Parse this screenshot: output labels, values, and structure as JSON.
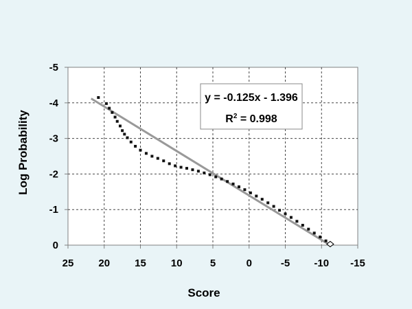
{
  "chart_data": {
    "type": "scatter",
    "xlabel": "Score",
    "ylabel": "Log Probability",
    "x_ticks": [
      "25",
      "20",
      "15",
      "10",
      "5",
      "0",
      "-5",
      "-10",
      "-15"
    ],
    "y_ticks": [
      "-5",
      "-4",
      "-3",
      "-2",
      "-1",
      "0"
    ],
    "xlim": [
      25,
      -15
    ],
    "ylim": [
      0,
      -5
    ],
    "grid": true,
    "colors": {
      "background": "#e9f4f7",
      "plot_background": "#ffffff",
      "points": "#111111",
      "trendline": "#999999"
    },
    "series": [
      {
        "type": "scatter",
        "points": [
          [
            20.8,
            -4.15
          ],
          [
            19.7,
            -3.98
          ],
          [
            19.3,
            -3.85
          ],
          [
            18.9,
            -3.73
          ],
          [
            18.5,
            -3.6
          ],
          [
            18.2,
            -3.48
          ],
          [
            17.8,
            -3.35
          ],
          [
            17.5,
            -3.22
          ],
          [
            17.2,
            -3.12
          ],
          [
            16.8,
            -3.02
          ],
          [
            16.3,
            -2.9
          ],
          [
            15.7,
            -2.78
          ],
          [
            15.0,
            -2.67
          ],
          [
            14.2,
            -2.58
          ],
          [
            13.4,
            -2.5
          ],
          [
            12.6,
            -2.44
          ],
          [
            11.8,
            -2.37
          ],
          [
            11.0,
            -2.29
          ],
          [
            10.2,
            -2.23
          ],
          [
            9.4,
            -2.19
          ],
          [
            8.6,
            -2.16
          ],
          [
            7.8,
            -2.12
          ],
          [
            7.0,
            -2.08
          ],
          [
            6.2,
            -2.03
          ],
          [
            5.4,
            -1.98
          ],
          [
            4.6,
            -1.92
          ],
          [
            3.8,
            -1.86
          ],
          [
            3.0,
            -1.79
          ],
          [
            2.2,
            -1.72
          ],
          [
            1.4,
            -1.64
          ],
          [
            0.6,
            -1.56
          ],
          [
            -0.2,
            -1.47
          ],
          [
            -1.0,
            -1.38
          ],
          [
            -1.8,
            -1.29
          ],
          [
            -2.6,
            -1.19
          ],
          [
            -3.4,
            -1.09
          ],
          [
            -4.2,
            -0.98
          ],
          [
            -5.0,
            -0.88
          ],
          [
            -5.8,
            -0.78
          ],
          [
            -6.6,
            -0.67
          ],
          [
            -7.4,
            -0.56
          ],
          [
            -8.2,
            -0.45
          ],
          [
            -9.0,
            -0.34
          ],
          [
            -9.8,
            -0.23
          ],
          [
            -10.6,
            -0.12
          ],
          [
            -11.2,
            -0.03
          ]
        ]
      },
      {
        "type": "trendline",
        "equation": "y = -0.125x - 1.396",
        "r2_prefix": "R",
        "r2_sup": "2",
        "r2_value": " = 0.998",
        "x_range": [
          21.8,
          -11.2
        ]
      }
    ]
  }
}
